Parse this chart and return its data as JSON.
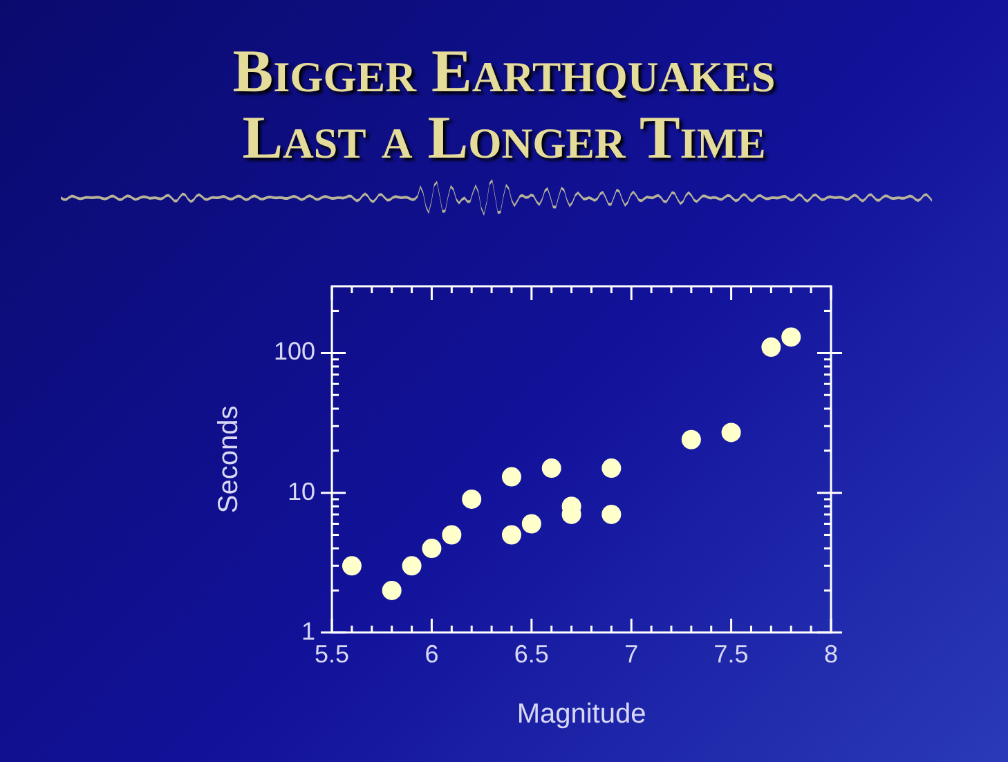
{
  "chart_data": {
    "type": "scatter",
    "title": "Bigger Earthquakes Last a Longer Time",
    "xlabel": "Magnitude",
    "ylabel": "Seconds",
    "log": "y",
    "marker": "circle",
    "x": [
      5.6,
      5.8,
      5.9,
      6.0,
      6.1,
      6.2,
      6.4,
      6.4,
      6.5,
      6.6,
      6.7,
      6.7,
      6.9,
      6.9,
      7.3,
      7.5,
      7.7,
      7.8
    ],
    "series": [
      {
        "color": "#ffffcc",
        "values": [
          3,
          2,
          3,
          4,
          5,
          9,
          13,
          5,
          6,
          15,
          8,
          7,
          15,
          7,
          24,
          27,
          110,
          130
        ]
      }
    ],
    "xlim": [
      5.5,
      8
    ],
    "ylim": [
      1,
      300
    ],
    "xticks": [
      5.5,
      {
        "value": 5.6,
        "label": null
      },
      {
        "value": 5.7,
        "label": null
      },
      {
        "value": 5.8,
        "label": null
      },
      {
        "value": 5.9,
        "label": null
      },
      6,
      {
        "value": 6.1,
        "label": null
      },
      {
        "value": 6.2,
        "label": null
      },
      {
        "value": 6.3,
        "label": null
      },
      {
        "value": 6.4,
        "label": null
      },
      6.5,
      {
        "value": 6.6,
        "label": null
      },
      {
        "value": 6.7,
        "label": null
      },
      {
        "value": 6.8,
        "label": null
      },
      {
        "value": 6.9,
        "label": null
      },
      7,
      {
        "value": 7.1,
        "label": null
      },
      {
        "value": 7.2,
        "label": null
      },
      {
        "value": 7.3,
        "label": null
      },
      {
        "value": 7.4,
        "label": null
      },
      7.5,
      {
        "value": 7.6,
        "label": null
      },
      {
        "value": 7.7,
        "label": null
      },
      {
        "value": 7.8,
        "label": null
      },
      {
        "value": 7.9,
        "label": null
      },
      8
    ],
    "yticks": [
      1,
      {
        "value": 2,
        "label": null
      },
      {
        "value": 3,
        "label": null
      },
      {
        "value": 4,
        "label": null
      },
      {
        "value": 5,
        "label": null
      },
      {
        "value": 6,
        "label": null
      },
      {
        "value": 7,
        "label": null
      },
      {
        "value": 8,
        "label": null
      },
      {
        "value": 9,
        "label": null
      },
      10,
      {
        "value": 20,
        "label": null
      },
      {
        "value": 30,
        "label": null
      },
      {
        "value": 40,
        "label": null
      },
      {
        "value": 50,
        "label": null
      },
      {
        "value": 60,
        "label": null
      },
      {
        "value": 70,
        "label": null
      },
      {
        "value": 80,
        "label": null
      },
      {
        "value": 90,
        "label": null
      },
      100,
      {
        "value": 200,
        "label": null
      }
    ]
  }
}
